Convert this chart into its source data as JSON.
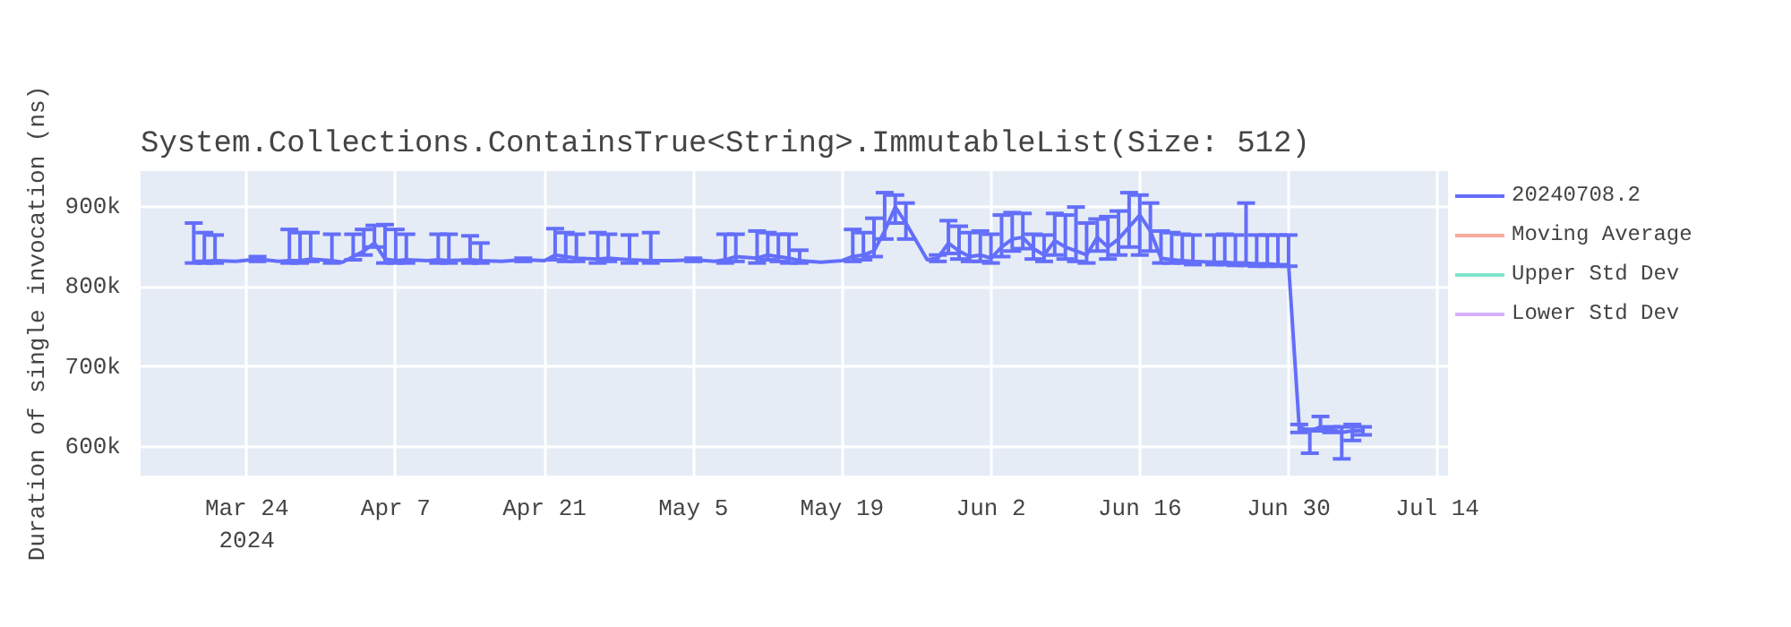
{
  "chart_data": {
    "type": "line",
    "title": "System.Collections.ContainsTrue<String>.ImmutableList(Size: 512)",
    "ylabel": "Duration of single invocation (ns)",
    "x": [
      "2024-03-19",
      "2024-03-20",
      "2024-03-21",
      "2024-03-23",
      "2024-03-25",
      "2024-03-27",
      "2024-03-28",
      "2024-03-29",
      "2024-03-30",
      "2024-04-01",
      "2024-04-02",
      "2024-04-03",
      "2024-04-04",
      "2024-04-05",
      "2024-04-06",
      "2024-04-07",
      "2024-04-08",
      "2024-04-10",
      "2024-04-11",
      "2024-04-12",
      "2024-04-14",
      "2024-04-15",
      "2024-04-17",
      "2024-04-19",
      "2024-04-21",
      "2024-04-22",
      "2024-04-23",
      "2024-04-24",
      "2024-04-26",
      "2024-04-27",
      "2024-04-29",
      "2024-05-01",
      "2024-05-03",
      "2024-05-05",
      "2024-05-07",
      "2024-05-08",
      "2024-05-09",
      "2024-05-11",
      "2024-05-12",
      "2024-05-13",
      "2024-05-14",
      "2024-05-15",
      "2024-05-17",
      "2024-05-19",
      "2024-05-20",
      "2024-05-21",
      "2024-05-22",
      "2024-05-23",
      "2024-05-24",
      "2024-05-25",
      "2024-05-27",
      "2024-05-28",
      "2024-05-29",
      "2024-05-30",
      "2024-05-31",
      "2024-06-01",
      "2024-06-02",
      "2024-06-03",
      "2024-06-04",
      "2024-06-05",
      "2024-06-06",
      "2024-06-07",
      "2024-06-08",
      "2024-06-09",
      "2024-06-10",
      "2024-06-11",
      "2024-06-12",
      "2024-06-13",
      "2024-06-14",
      "2024-06-15",
      "2024-06-16",
      "2024-06-17",
      "2024-06-18",
      "2024-06-19",
      "2024-06-20",
      "2024-06-21",
      "2024-06-23",
      "2024-06-24",
      "2024-06-25",
      "2024-06-26",
      "2024-06-27",
      "2024-06-28",
      "2024-06-29",
      "2024-06-30",
      "2024-07-01",
      "2024-07-02",
      "2024-07-03",
      "2024-07-04",
      "2024-07-05",
      "2024-07-06",
      "2024-07-07"
    ],
    "series": [
      {
        "name": "20240708.2",
        "color": "#636efa",
        "values": [
          832000,
          832000,
          833000,
          832000,
          835000,
          832000,
          833000,
          833000,
          835000,
          833000,
          831000,
          838000,
          845000,
          855000,
          835000,
          833000,
          834000,
          833000,
          834000,
          833000,
          834000,
          833000,
          832000,
          834000,
          833000,
          840000,
          838000,
          836000,
          835000,
          836000,
          834000,
          833000,
          833000,
          834000,
          832000,
          834000,
          838000,
          836000,
          840000,
          838000,
          836000,
          833000,
          831000,
          833000,
          838000,
          840000,
          845000,
          870000,
          900000,
          880000,
          834000,
          836000,
          855000,
          845000,
          838000,
          840000,
          836000,
          850000,
          860000,
          862000,
          848000,
          840000,
          858000,
          850000,
          845000,
          840000,
          862000,
          850000,
          860000,
          875000,
          890000,
          870000,
          836000,
          834000,
          833000,
          832000,
          831000,
          831000,
          830000,
          830000,
          829000,
          829000,
          828000,
          828000,
          625000,
          620000,
          625000,
          622000,
          618000,
          620000,
          620000
        ],
        "errors": [
          [
            830000,
            880000
          ],
          [
            830000,
            868000
          ],
          [
            830000,
            865000
          ],
          null,
          [
            832000,
            838000
          ],
          null,
          [
            830000,
            872000
          ],
          [
            830000,
            868000
          ],
          [
            832000,
            868000
          ],
          [
            830000,
            866000
          ],
          null,
          [
            834000,
            866000
          ],
          [
            840000,
            872000
          ],
          [
            850000,
            877000
          ],
          [
            830000,
            878000
          ],
          [
            830000,
            872000
          ],
          [
            830000,
            866000
          ],
          null,
          [
            830000,
            866000
          ],
          [
            830000,
            866000
          ],
          [
            830000,
            864000
          ],
          [
            830000,
            855000
          ],
          null,
          [
            832000,
            836000
          ],
          null,
          [
            834000,
            873000
          ],
          [
            832000,
            868000
          ],
          [
            832000,
            866000
          ],
          [
            830000,
            868000
          ],
          [
            832000,
            866000
          ],
          [
            830000,
            865000
          ],
          [
            830000,
            868000
          ],
          null,
          [
            832000,
            836000
          ],
          null,
          [
            830000,
            866000
          ],
          [
            832000,
            866000
          ],
          [
            830000,
            870000
          ],
          [
            834000,
            868000
          ],
          [
            832000,
            866000
          ],
          [
            830000,
            866000
          ],
          [
            830000,
            846000
          ],
          null,
          null,
          [
            832000,
            872000
          ],
          [
            834000,
            868000
          ],
          [
            838000,
            886000
          ],
          [
            860000,
            918000
          ],
          [
            880000,
            915000
          ],
          [
            860000,
            905000
          ],
          null,
          [
            832000,
            840000
          ],
          [
            842000,
            883000
          ],
          [
            835000,
            876000
          ],
          [
            832000,
            868000
          ],
          [
            832000,
            870000
          ],
          [
            830000,
            866000
          ],
          [
            838000,
            890000
          ],
          [
            845000,
            893000
          ],
          [
            848000,
            892000
          ],
          [
            835000,
            866000
          ],
          [
            832000,
            865000
          ],
          [
            840000,
            892000
          ],
          [
            835000,
            890000
          ],
          [
            832000,
            900000
          ],
          [
            830000,
            880000
          ],
          [
            845000,
            885000
          ],
          [
            835000,
            888000
          ],
          [
            840000,
            895000
          ],
          [
            850000,
            918000
          ],
          [
            840000,
            915000
          ],
          [
            845000,
            905000
          ],
          [
            830000,
            870000
          ],
          [
            830000,
            868000
          ],
          [
            830000,
            866000
          ],
          [
            828000,
            865000
          ],
          [
            828000,
            865000
          ],
          [
            828000,
            866000
          ],
          [
            827000,
            865000
          ],
          [
            827000,
            905000
          ],
          [
            826000,
            865000
          ],
          [
            826000,
            865000
          ],
          [
            826000,
            865000
          ],
          [
            826000,
            865000
          ],
          [
            618000,
            628000
          ],
          [
            592000,
            622000
          ],
          [
            620000,
            638000
          ],
          [
            618000,
            625000
          ],
          [
            585000,
            625000
          ],
          [
            608000,
            628000
          ],
          [
            615000,
            625000
          ]
        ]
      },
      {
        "name": "Moving Average",
        "color": "#ef553b",
        "values": [
          null,
          null,
          null,
          null,
          null,
          null,
          null,
          null,
          null,
          null,
          null,
          null,
          null,
          null,
          null,
          null,
          null,
          null,
          null,
          null,
          null,
          null,
          null,
          null,
          null,
          null,
          null,
          null,
          null,
          null,
          null,
          null,
          null,
          null,
          null,
          null,
          null,
          null,
          null,
          null,
          null,
          null,
          null,
          null,
          null,
          null,
          null,
          null,
          null,
          null,
          null,
          null,
          null,
          null,
          null,
          null,
          null,
          null,
          null,
          null,
          null,
          null,
          null,
          null,
          null,
          null,
          null,
          null,
          null,
          null,
          null,
          null,
          null,
          null,
          null,
          null,
          null,
          null,
          null,
          null,
          null,
          null,
          null,
          null,
          null,
          null,
          null,
          null,
          null,
          null,
          null
        ]
      },
      {
        "name": "Upper Std Dev",
        "color": "#00cc96",
        "values": [
          null,
          null,
          null,
          null,
          null,
          null,
          null,
          null,
          null,
          null,
          null,
          null,
          null,
          null,
          null,
          null,
          null,
          null,
          null,
          null,
          null,
          null,
          null,
          null,
          null,
          null,
          null,
          null,
          null,
          null,
          null,
          null,
          null,
          null,
          null,
          null,
          null,
          null,
          null,
          null,
          null,
          null,
          null,
          null,
          null,
          null,
          null,
          null,
          null,
          null,
          null,
          null,
          null,
          null,
          null,
          null,
          null,
          null,
          null,
          null,
          null,
          null,
          null,
          null,
          null,
          null,
          null,
          null,
          null,
          null,
          null,
          null,
          null,
          null,
          null,
          null,
          null,
          null,
          null,
          null,
          null,
          null,
          null,
          null,
          null,
          null,
          null,
          null,
          null,
          null,
          null
        ]
      },
      {
        "name": "Lower Std Dev",
        "color": "#ab63fa",
        "values": [
          null,
          null,
          null,
          null,
          null,
          null,
          null,
          null,
          null,
          null,
          null,
          null,
          null,
          null,
          null,
          null,
          null,
          null,
          null,
          null,
          null,
          null,
          null,
          null,
          null,
          null,
          null,
          null,
          null,
          null,
          null,
          null,
          null,
          null,
          null,
          null,
          null,
          null,
          null,
          null,
          null,
          null,
          null,
          null,
          null,
          null,
          null,
          null,
          null,
          null,
          null,
          null,
          null,
          null,
          null,
          null,
          null,
          null,
          null,
          null,
          null,
          null,
          null,
          null,
          null,
          null,
          null,
          null,
          null,
          null,
          null,
          null,
          null,
          null,
          null,
          null,
          null,
          null,
          null,
          null,
          null,
          null,
          null,
          null,
          null,
          null,
          null,
          null,
          null,
          null,
          null
        ]
      }
    ],
    "xlim": [
      "2024-03-14",
      "2024-07-15"
    ],
    "xticks": [
      {
        "value": "2024-03-24",
        "label": "Mar 24\n2024"
      },
      {
        "value": "2024-04-07",
        "label": "Apr 7"
      },
      {
        "value": "2024-04-21",
        "label": "Apr 21"
      },
      {
        "value": "2024-05-05",
        "label": "May 5"
      },
      {
        "value": "2024-05-19",
        "label": "May 19"
      },
      {
        "value": "2024-06-02",
        "label": "Jun 2"
      },
      {
        "value": "2024-06-16",
        "label": "Jun 16"
      },
      {
        "value": "2024-06-30",
        "label": "Jun 30"
      },
      {
        "value": "2024-07-14",
        "label": "Jul 14"
      }
    ],
    "ylim": [
      564000,
      945000
    ],
    "yticks": [
      {
        "value": 600000,
        "label": "600k"
      },
      {
        "value": 700000,
        "label": "700k"
      },
      {
        "value": 800000,
        "label": "800k"
      },
      {
        "value": 900000,
        "label": "900k"
      }
    ],
    "grid": true,
    "legend": "right",
    "marker": "none",
    "line_style": "solid"
  }
}
